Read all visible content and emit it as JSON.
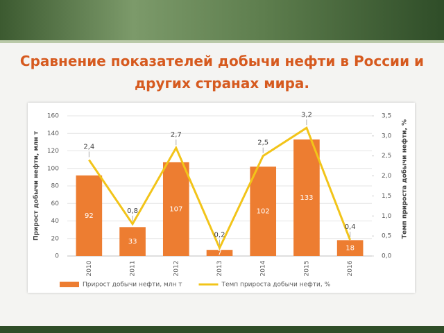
{
  "chart_data": {
    "type": "bar-line",
    "title": "Сравнение показателей добычи нефти в России и других странах мира.",
    "y_label": "Прирост добычи нефти, млн т",
    "y2_label": "Темп прироста добычи нефти, %",
    "categories": [
      "2010",
      "2011",
      "2012",
      "2013",
      "2014",
      "2015",
      "2016"
    ],
    "series": [
      {
        "name": "Прирост добычи нефти, млн т",
        "type": "bar",
        "color": "#ed7d31",
        "values": [
          92,
          33,
          107,
          7,
          102,
          133,
          18
        ]
      },
      {
        "name": "Темп прироста добычи нефти, %",
        "type": "line",
        "axis": "y2",
        "color": "#f2c419",
        "values": [
          2.4,
          0.8,
          2.7,
          0.2,
          2.5,
          3.2,
          0.4
        ],
        "value_labels": [
          "2,4",
          "0,8",
          "2,7",
          "0,2",
          "2,5",
          "3,2",
          "0,4"
        ]
      }
    ],
    "ylim": [
      0,
      160
    ],
    "yticks": [
      0,
      20,
      40,
      60,
      80,
      100,
      120,
      140,
      160
    ],
    "y2lim": [
      0,
      3.5
    ],
    "y2ticks": [
      {
        "value": 0,
        "label": "0,0"
      },
      {
        "value": 0.5,
        "label": "0,5"
      },
      {
        "value": 1,
        "label": "1,0"
      },
      {
        "value": 1.5,
        "label": "1,5"
      },
      {
        "value": 2,
        "label": "2,0"
      },
      {
        "value": 2.5,
        "label": "2,5"
      },
      {
        "value": 3,
        "label": "3,0"
      },
      {
        "value": 3.5,
        "label": "3,5"
      }
    ],
    "legend": "bottom"
  }
}
